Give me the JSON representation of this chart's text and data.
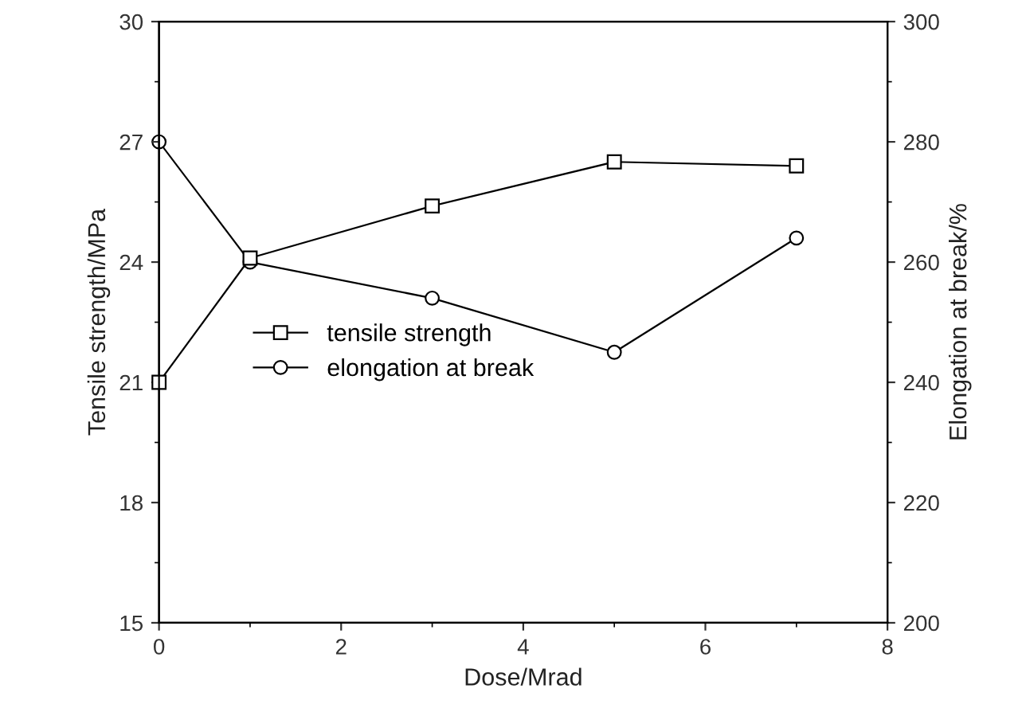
{
  "chart_data": {
    "type": "line",
    "xlabel": "Dose/Mrad",
    "ylabel": "Tensile strength/MPa",
    "y2label": "Elongation at break/%",
    "x": [
      0,
      1,
      3,
      5,
      7
    ],
    "series": [
      {
        "name": "tensile strength",
        "color": "#000000",
        "marker": "square",
        "values": [
          21.0,
          24.1,
          25.4,
          26.5,
          26.4
        ]
      },
      {
        "name": "elongation at break",
        "color": "#000000",
        "marker": "circle",
        "axis": "y2",
        "values": [
          280,
          260,
          254,
          245,
          264
        ]
      }
    ],
    "xlim": [
      0,
      8
    ],
    "xticks": [
      0,
      2,
      4,
      6,
      8
    ],
    "ylim": [
      15,
      30
    ],
    "yticks": [
      15,
      18,
      21,
      24,
      27,
      30
    ],
    "y2lim": [
      200,
      300
    ],
    "y2ticks": [
      200,
      220,
      240,
      260,
      280,
      300
    ],
    "grid": false,
    "legend": "left",
    "line_style": "solid"
  }
}
